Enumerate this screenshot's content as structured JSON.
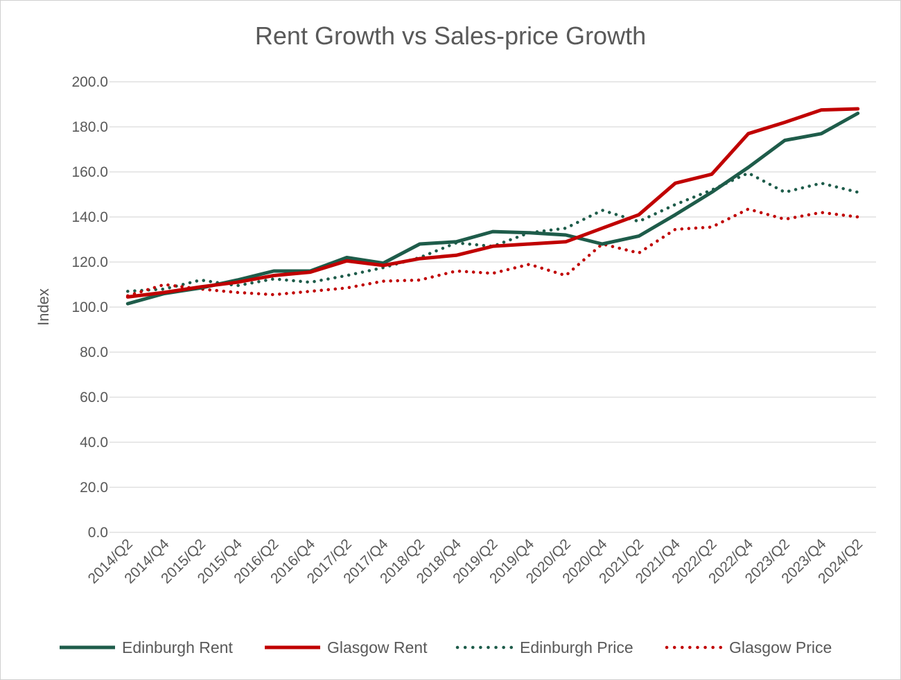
{
  "chart_data": {
    "type": "line",
    "title": "Rent Growth vs Sales-price Growth",
    "xlabel": "",
    "ylabel": "Index",
    "ylim": [
      0,
      200
    ],
    "yticks": [
      0,
      20,
      40,
      60,
      80,
      100,
      120,
      140,
      160,
      180,
      200
    ],
    "ytick_labels": [
      "0.0",
      "20.0",
      "40.0",
      "60.0",
      "80.0",
      "100.0",
      "120.0",
      "140.0",
      "160.0",
      "180.0",
      "200.0"
    ],
    "grid": "horizontal",
    "legend_position": "bottom",
    "categories": [
      "2014/Q2",
      "2014/Q4",
      "2015/Q2",
      "2015/Q4",
      "2016/Q2",
      "2016/Q4",
      "2017/Q2",
      "2017/Q4",
      "2018/Q2",
      "2018/Q4",
      "2019/Q2",
      "2019/Q4",
      "2020/Q2",
      "2020/Q4",
      "2021/Q2",
      "2021/Q4",
      "2022/Q2",
      "2022/Q4",
      "2023/Q2",
      "2023/Q4",
      "2024/Q2"
    ],
    "series": [
      {
        "name": "Edinburgh Rent",
        "color": "#1e5c4a",
        "style": "solid",
        "values": [
          101.5,
          106.0,
          108.5,
          112.0,
          116.0,
          116.0,
          122.0,
          119.5,
          128.0,
          129.0,
          133.5,
          133.0,
          132.0,
          128.0,
          131.5,
          141.0,
          151.0,
          162.0,
          174.0,
          177.0,
          186.0
        ]
      },
      {
        "name": "Glasgow Rent",
        "color": "#c00000",
        "style": "solid",
        "values": [
          104.5,
          106.5,
          109.0,
          111.0,
          114.0,
          115.5,
          120.5,
          118.5,
          121.5,
          123.0,
          127.0,
          128.0,
          129.0,
          135.0,
          141.0,
          155.0,
          159.0,
          177.0,
          182.0,
          187.5,
          188.0
        ]
      },
      {
        "name": "Edinburgh Price",
        "color": "#1e5c4a",
        "style": "dotted",
        "values": [
          107.0,
          108.0,
          112.0,
          109.5,
          112.5,
          111.0,
          114.0,
          117.5,
          122.0,
          128.5,
          127.0,
          133.0,
          135.0,
          143.0,
          138.0,
          145.5,
          152.0,
          159.5,
          151.0,
          155.0,
          151.0
        ]
      },
      {
        "name": "Glasgow Price",
        "color": "#c00000",
        "style": "dotted",
        "values": [
          105.0,
          110.0,
          108.0,
          106.5,
          105.5,
          107.0,
          108.5,
          111.5,
          112.0,
          116.0,
          115.0,
          119.0,
          114.0,
          128.0,
          124.0,
          134.5,
          135.5,
          143.5,
          139.0,
          142.0,
          140.0
        ]
      }
    ]
  }
}
